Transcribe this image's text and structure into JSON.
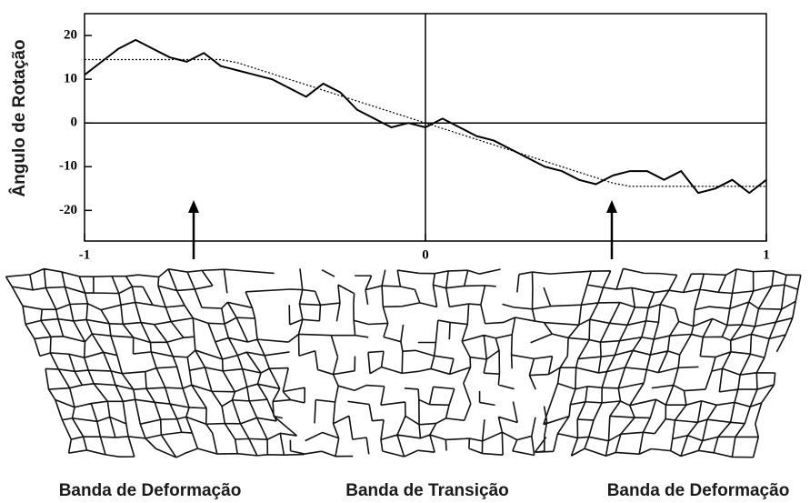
{
  "chart_data": {
    "type": "line",
    "ylabel": "Ângulo de Rotação",
    "x": [
      -1,
      -0.95,
      -0.9,
      -0.85,
      -0.8,
      -0.75,
      -0.7,
      -0.65,
      -0.6,
      -0.55,
      -0.5,
      -0.45,
      -0.4,
      -0.35,
      -0.3,
      -0.25,
      -0.2,
      -0.15,
      -0.1,
      -0.05,
      0,
      0.05,
      0.1,
      0.15,
      0.2,
      0.25,
      0.3,
      0.35,
      0.4,
      0.45,
      0.5,
      0.55,
      0.6,
      0.65,
      0.7,
      0.75,
      0.8,
      0.85,
      0.9,
      0.95,
      1
    ],
    "series": [
      {
        "color": "#000000",
        "values": [
          11,
          14,
          17,
          19,
          17,
          15,
          14,
          16,
          13,
          12,
          11,
          10,
          8,
          6,
          9,
          7,
          3,
          1,
          -1,
          0,
          -1,
          1,
          -1,
          -3,
          -4,
          -6,
          -8,
          -10,
          -11,
          -13,
          -14,
          -12,
          -11,
          -11,
          -13,
          -11,
          -16,
          -15,
          -13,
          -16,
          -13
        ]
      },
      {
        "color": "#000000",
        "style": "dotted",
        "values": [
          14.5,
          14.5,
          14.5,
          14.5,
          14.5,
          14.5,
          14.5,
          14.5,
          14.5,
          13.75,
          12.5,
          11.25,
          10,
          8.75,
          7.5,
          6.25,
          5,
          3.75,
          2.5,
          1.25,
          0,
          -1.25,
          -2.5,
          -3.75,
          -5,
          -6.25,
          -7.5,
          -8.75,
          -10,
          -11.25,
          -12.5,
          -13.75,
          -14.5,
          -14.5,
          -14.5,
          -14.5,
          -14.5,
          -14.5,
          -14.5,
          -14.5,
          -14.5
        ]
      }
    ],
    "xlim": [
      -1,
      1
    ],
    "xticks": [
      -1,
      0,
      1
    ],
    "ylim": [
      -27,
      25
    ],
    "yticks": [
      -20,
      -10,
      0,
      10,
      20
    ]
  },
  "labels": [
    "Banda de Deformação",
    "Banda de Transição",
    "Banda de Deformação"
  ]
}
